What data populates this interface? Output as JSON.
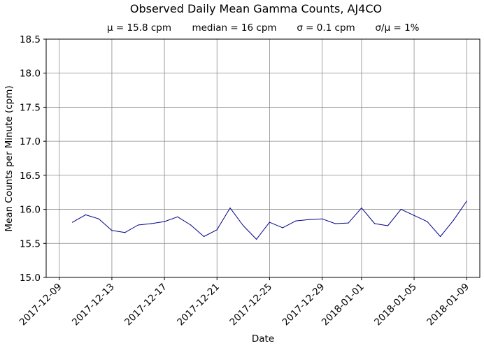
{
  "chart_data": {
    "type": "line",
    "title": "Observed Daily Mean Gamma Counts, AJ4CO",
    "subtitle": {
      "mean": "μ = 15.8 cpm",
      "median": "median = 16 cpm",
      "sigma": "σ = 0.1 cpm",
      "ratio": "σ/μ = 1%"
    },
    "xlabel": "Date",
    "ylabel": "Mean Counts per Minute (cpm)",
    "x_range": [
      "2017-12-08",
      "2018-01-10"
    ],
    "ylim": [
      15.0,
      18.5
    ],
    "yticks": [
      "15.0",
      "15.5",
      "16.0",
      "16.5",
      "17.0",
      "17.5",
      "18.0",
      "18.5"
    ],
    "xticks": [
      "2017-12-09",
      "2017-12-13",
      "2017-12-17",
      "2017-12-21",
      "2017-12-25",
      "2017-12-29",
      "2018-01-01",
      "2018-01-05",
      "2018-01-09"
    ],
    "grid": true,
    "line_color": "#00008b",
    "series": [
      {
        "x": [
          "2017-12-10",
          "2017-12-11",
          "2017-12-12",
          "2017-12-13",
          "2017-12-14",
          "2017-12-15",
          "2017-12-16",
          "2017-12-17",
          "2017-12-18",
          "2017-12-19",
          "2017-12-20",
          "2017-12-21",
          "2017-12-22",
          "2017-12-23",
          "2017-12-24",
          "2017-12-25",
          "2017-12-26",
          "2017-12-27",
          "2017-12-28",
          "2017-12-29",
          "2017-12-30",
          "2017-12-31",
          "2018-01-01",
          "2018-01-02",
          "2018-01-03",
          "2018-01-04",
          "2018-01-05",
          "2018-01-06",
          "2018-01-07",
          "2018-01-08",
          "2018-01-09"
        ],
        "values": [
          15.81,
          15.92,
          15.86,
          15.69,
          15.66,
          15.77,
          15.79,
          15.82,
          15.89,
          15.77,
          15.6,
          15.7,
          16.02,
          15.76,
          15.56,
          15.81,
          15.73,
          15.83,
          15.85,
          15.86,
          15.79,
          15.8,
          16.02,
          15.79,
          15.76,
          16.0,
          15.91,
          15.82,
          15.6,
          15.84,
          16.12
        ]
      }
    ]
  }
}
